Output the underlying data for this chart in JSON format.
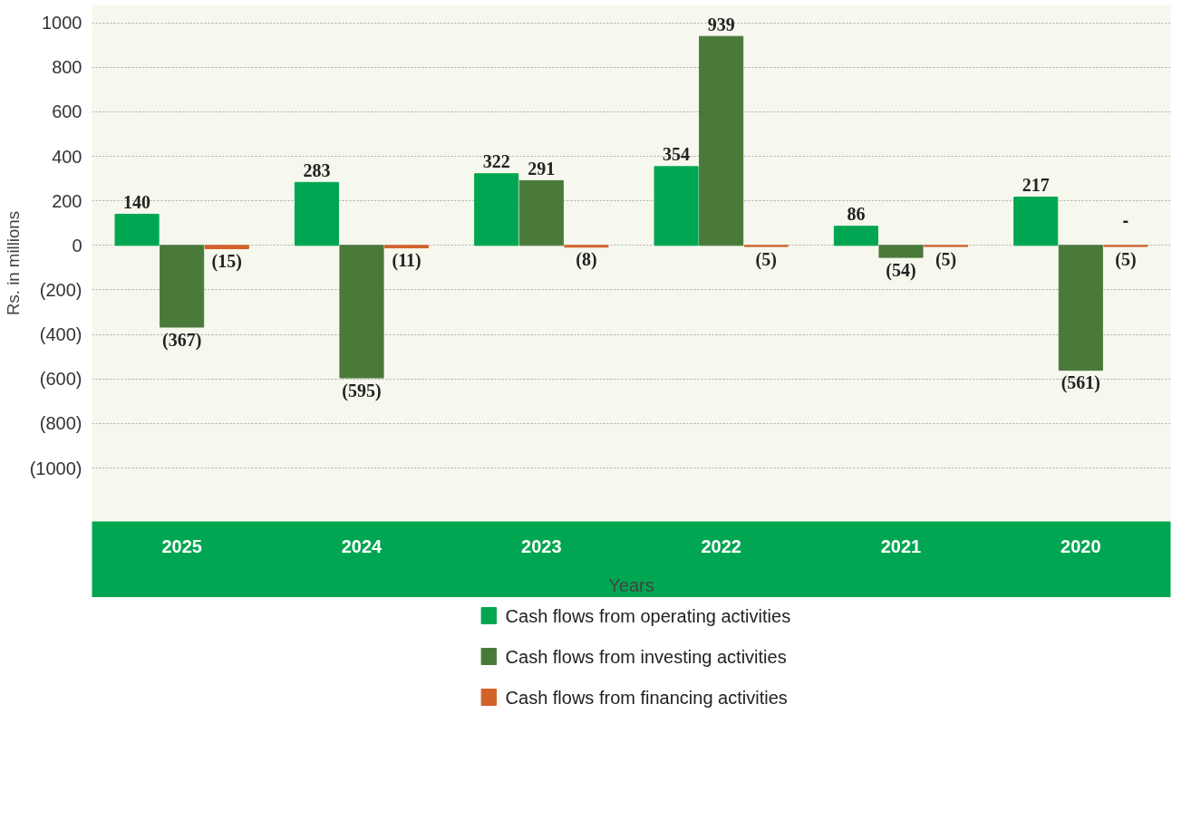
{
  "chart_data": {
    "type": "bar",
    "xlabel": "Years",
    "ylabel": "Rs. in millions",
    "categories": [
      "2025",
      "2024",
      "2023",
      "2022",
      "2021",
      "2020"
    ],
    "series": [
      {
        "name": "Cash flows from operating activities",
        "color": "#00a651",
        "values": [
          140,
          283,
          322,
          354,
          86,
          217
        ],
        "value_labels": [
          "140",
          "283",
          "322",
          "354",
          "86",
          "217"
        ]
      },
      {
        "name": "Cash flows from investing activities",
        "color": "#4a7a3a",
        "values": [
          -367,
          -595,
          291,
          939,
          -54,
          -561
        ],
        "value_labels": [
          "(367)",
          "(595)",
          "291",
          "939",
          "(54)",
          "(561)"
        ]
      },
      {
        "name": "Cash flows from financing activities",
        "color": "#d2622a",
        "values": [
          -15,
          -11,
          -8,
          -5,
          -5,
          -5
        ],
        "value_labels": [
          "(15)",
          "(11)",
          "(8)",
          "(5)",
          "(5)",
          "(5)"
        ]
      }
    ],
    "annotations": [
      "-"
    ],
    "ylim": [
      -1240,
      1080
    ],
    "yticks": [
      {
        "value": 1000,
        "label": "1000"
      },
      {
        "value": 800,
        "label": "800"
      },
      {
        "value": 600,
        "label": "600"
      },
      {
        "value": 400,
        "label": "400"
      },
      {
        "value": 200,
        "label": "200"
      },
      {
        "value": 0,
        "label": "0"
      },
      {
        "value": -200,
        "label": "(200)"
      },
      {
        "value": -400,
        "label": "(400)"
      },
      {
        "value": -600,
        "label": "(600)"
      },
      {
        "value": -800,
        "label": "(800)"
      },
      {
        "value": -1000,
        "label": "(1000)"
      }
    ],
    "grid": "y",
    "legend": "bottom"
  }
}
